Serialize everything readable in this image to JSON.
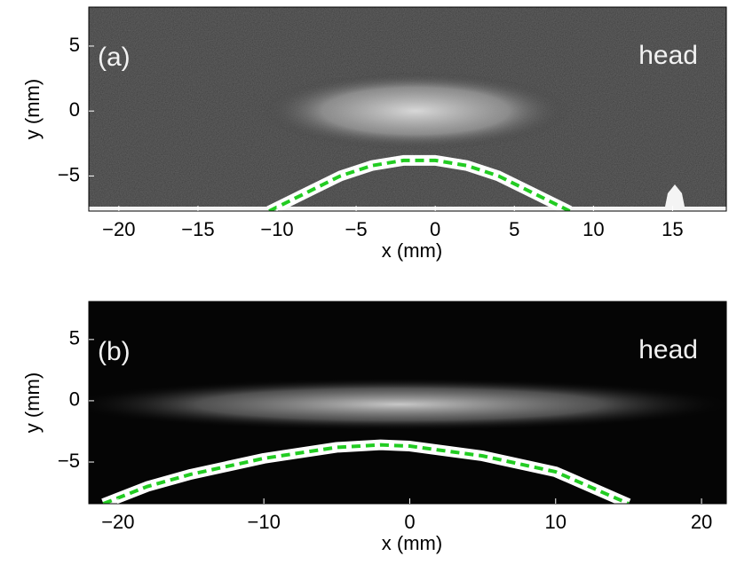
{
  "chart_data": [
    {
      "type": "image",
      "panel_label": "(a)",
      "annotation": "head",
      "xlabel": "x (mm)",
      "ylabel": "y (mm)",
      "xlim": [
        -21.9,
        18.4
      ],
      "ylim": [
        -7.7,
        8
      ],
      "xticks": [
        {
          "value": -20,
          "label": "−20"
        },
        {
          "value": -15,
          "label": "−15"
        },
        {
          "value": -10,
          "label": "−10"
        },
        {
          "value": -5,
          "label": "−5"
        },
        0,
        5,
        10,
        15
      ],
      "yticks": [
        {
          "value": -5,
          "label": "−5"
        },
        0,
        5
      ],
      "series": [
        {
          "color": "#22cc22",
          "x": [
            -10.5,
            -8,
            -6,
            -4,
            -2,
            0,
            2,
            4,
            6,
            8.5
          ],
          "values": [
            -7.7,
            -6.2,
            -5,
            -4.2,
            -3.8,
            -3.8,
            -4.2,
            -5,
            -6.2,
            -7.7
          ]
        }
      ]
    },
    {
      "type": "image",
      "panel_label": "(b)",
      "annotation": "head",
      "xlabel": "x (mm)",
      "ylabel": "y (mm)",
      "xlim": [
        -22,
        21.7
      ],
      "ylim": [
        -8.4,
        8.1
      ],
      "xticks": [
        {
          "value": -20,
          "label": "−20"
        },
        {
          "value": -10,
          "label": "−10"
        },
        0,
        10,
        20
      ],
      "yticks": [
        {
          "value": -5,
          "label": "−5"
        },
        0,
        5
      ],
      "series": [
        {
          "color": "#22cc22",
          "x": [
            -21,
            -18,
            -15,
            -10,
            -5,
            -2,
            0,
            5,
            10,
            15
          ],
          "values": [
            -8.4,
            -7,
            -6,
            -4.7,
            -3.8,
            -3.6,
            -3.7,
            -4.5,
            -5.8,
            -8.4
          ]
        }
      ]
    }
  ]
}
